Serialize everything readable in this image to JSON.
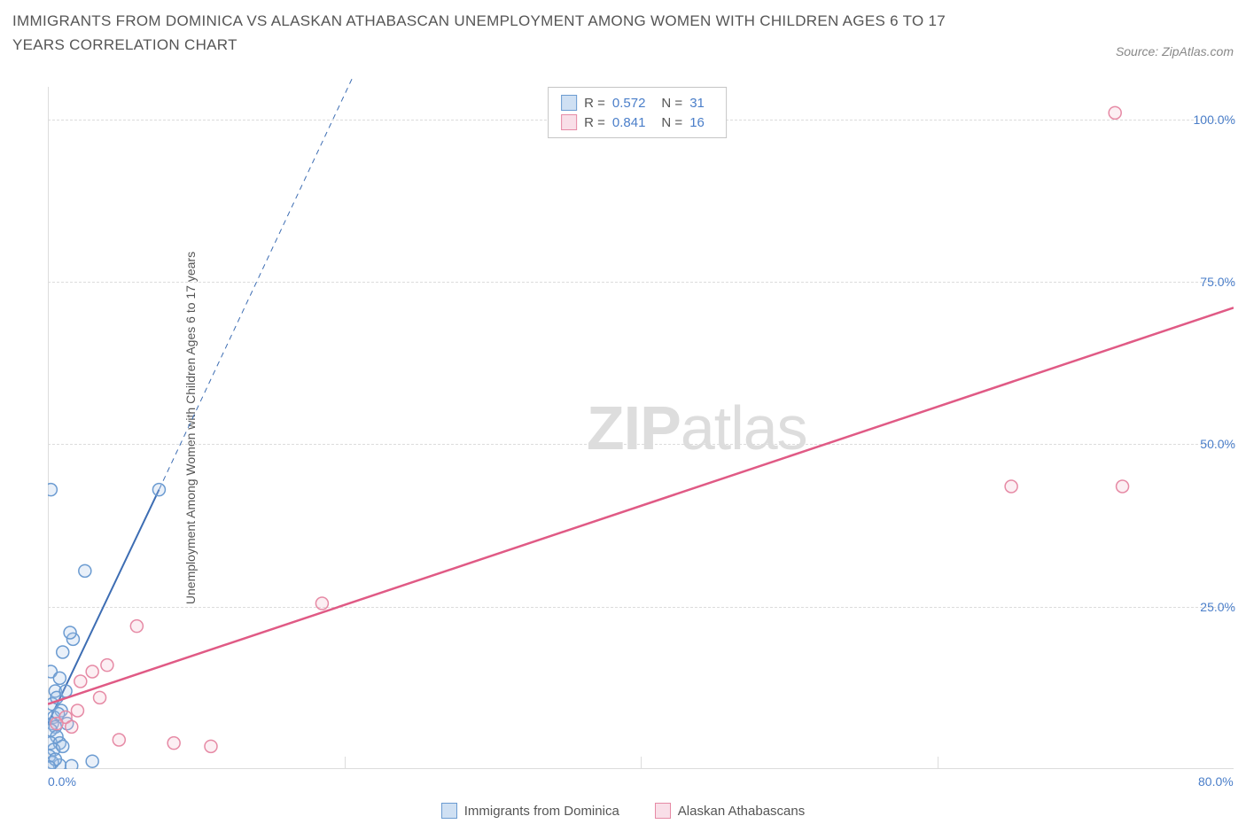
{
  "title": "IMMIGRANTS FROM DOMINICA VS ALASKAN ATHABASCAN UNEMPLOYMENT AMONG WOMEN WITH CHILDREN AGES 6 TO 17 YEARS CORRELATION CHART",
  "source_label": "Source: ZipAtlas.com",
  "y_axis_label": "Unemployment Among Women with Children Ages 6 to 17 years",
  "watermark_a": "ZIP",
  "watermark_b": "atlas",
  "chart": {
    "type": "scatter",
    "xlim": [
      0,
      80
    ],
    "ylim": [
      0,
      105
    ],
    "y_ticks": [
      {
        "v": 25,
        "label": "25.0%"
      },
      {
        "v": 50,
        "label": "50.0%"
      },
      {
        "v": 75,
        "label": "75.0%"
      },
      {
        "v": 100,
        "label": "100.0%"
      }
    ],
    "x_ticks": [
      {
        "v": 0,
        "label": "0.0%"
      },
      {
        "v": 80,
        "label": "80.0%"
      }
    ],
    "x_short_ticks": [
      20,
      40,
      60
    ],
    "grid_color": "#dcdcdc",
    "background_color": "#ffffff",
    "marker_radius": 7,
    "series": [
      {
        "name": "Immigrants from Dominica",
        "color_stroke": "#6b9bd1",
        "color_fill": "#a7c5e8",
        "swatch_fill": "#cfe0f3",
        "swatch_border": "#6b9bd1",
        "R": "0.572",
        "N": "31",
        "regression": {
          "x1": 0,
          "y1": 7,
          "x2": 7.5,
          "y2": 43,
          "dash_ext_x2": 25,
          "dash_ext_y2": 128,
          "color": "#3d6db3",
          "width": 2
        },
        "points": [
          [
            0.2,
            43
          ],
          [
            7.5,
            43
          ],
          [
            2.5,
            30.5
          ],
          [
            1.7,
            20
          ],
          [
            1.5,
            21
          ],
          [
            0.2,
            15
          ],
          [
            0.5,
            12
          ],
          [
            0.8,
            14
          ],
          [
            1.0,
            18
          ],
          [
            0.3,
            10
          ],
          [
            0.6,
            11
          ],
          [
            1.2,
            12
          ],
          [
            0.9,
            9
          ],
          [
            0.4,
            8
          ],
          [
            0.7,
            8.5
          ],
          [
            0.3,
            7
          ],
          [
            0.5,
            6.5
          ],
          [
            0.2,
            6
          ],
          [
            1.3,
            7
          ],
          [
            0.6,
            5
          ],
          [
            0.2,
            4
          ],
          [
            0.8,
            4
          ],
          [
            0.4,
            3
          ],
          [
            1.0,
            3.5
          ],
          [
            0.1,
            2
          ],
          [
            3.0,
            1.2
          ],
          [
            0.8,
            0.6
          ],
          [
            1.6,
            0.5
          ],
          [
            0.3,
            1.0
          ],
          [
            0.5,
            1.5
          ],
          [
            0.1,
            0.3
          ]
        ]
      },
      {
        "name": "Alaskan Athabascans",
        "color_stroke": "#e68aa5",
        "color_fill": "#f3c0d0",
        "swatch_fill": "#f9dfe8",
        "swatch_border": "#e68aa5",
        "R": "0.841",
        "N": "16",
        "regression": {
          "x1": 0,
          "y1": 10,
          "x2": 80,
          "y2": 71,
          "color": "#e05a85",
          "width": 2.5
        },
        "points": [
          [
            72,
            101
          ],
          [
            65,
            43.5
          ],
          [
            72.5,
            43.5
          ],
          [
            18.5,
            25.5
          ],
          [
            6.0,
            22
          ],
          [
            3.0,
            15
          ],
          [
            4.0,
            16
          ],
          [
            2.2,
            13.5
          ],
          [
            3.5,
            11
          ],
          [
            2.0,
            9
          ],
          [
            1.2,
            8
          ],
          [
            0.6,
            7
          ],
          [
            1.6,
            6.5
          ],
          [
            4.8,
            4.5
          ],
          [
            8.5,
            4.0
          ],
          [
            11.0,
            3.5
          ]
        ]
      }
    ],
    "stats_box": {
      "R_label": "R =",
      "N_label": "N ="
    }
  },
  "bottom_legend": [
    {
      "label": "Immigrants from Dominica",
      "fill": "#cfe0f3",
      "border": "#6b9bd1"
    },
    {
      "label": "Alaskan Athabascans",
      "fill": "#f9dfe8",
      "border": "#e68aa5"
    }
  ]
}
